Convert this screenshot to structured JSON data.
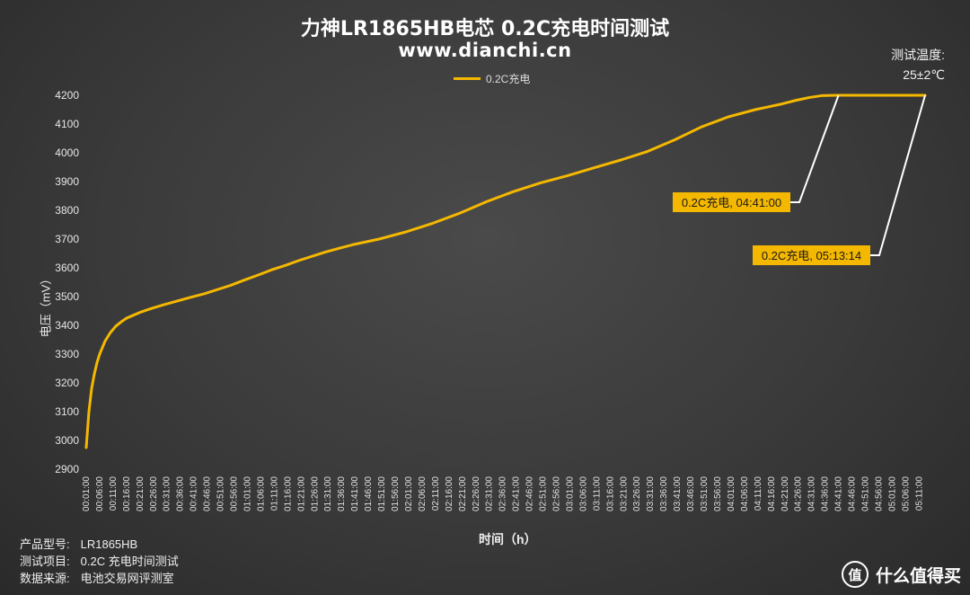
{
  "header": {
    "title": "力神LR1865HB电芯 0.2C充电时间测试",
    "subtitle": "www.dianchi.cn"
  },
  "temperature": {
    "label": "测试温度:",
    "value": "25±2℃"
  },
  "info": {
    "model_label": "产品型号:",
    "model_value": "LR1865HB",
    "item_label": "测试项目:",
    "item_value": "0.2C 充电时间测试",
    "source_label": "数据来源:",
    "source_value": "电池交易网评测室"
  },
  "brand": {
    "logo_char": "值",
    "text": "什么值得买"
  },
  "colors": {
    "line": "#f5b800",
    "callout_bg": "#f5b800",
    "leader": "#ffffff"
  },
  "chart_data": {
    "type": "line",
    "title": "力神LR1865HB电芯 0.2C充电时间测试",
    "xlabel": "时间（h）",
    "ylabel": "电压（mV）",
    "ylim": [
      2900,
      4200
    ],
    "yticks": [
      "2900",
      "3000",
      "3100",
      "3200",
      "3300",
      "3400",
      "3500",
      "3600",
      "3700",
      "3800",
      "3900",
      "4000",
      "4100",
      "4200"
    ],
    "legend_position": "top-center",
    "grid": false,
    "x_tick_labels": [
      "00:01:00",
      "00:06:00",
      "00:11:00",
      "00:16:00",
      "00:21:00",
      "00:26:00",
      "00:31:00",
      "00:36:00",
      "00:41:00",
      "00:46:00",
      "00:51:00",
      "00:56:00",
      "01:01:00",
      "01:06:00",
      "01:11:00",
      "01:16:00",
      "01:21:00",
      "01:26:00",
      "01:31:00",
      "01:36:00",
      "01:41:00",
      "01:46:00",
      "01:51:00",
      "01:56:00",
      "02:01:00",
      "02:06:00",
      "02:11:00",
      "02:16:00",
      "02:21:00",
      "02:26:00",
      "02:31:00",
      "02:36:00",
      "02:41:00",
      "02:46:00",
      "02:51:00",
      "02:56:00",
      "03:01:00",
      "03:06:00",
      "03:11:00",
      "03:16:00",
      "03:21:00",
      "03:26:00",
      "03:31:00",
      "03:36:00",
      "03:41:00",
      "03:46:00",
      "03:51:00",
      "03:56:00",
      "04:01:00",
      "04:06:00",
      "04:11:00",
      "04:16:00",
      "04:21:00",
      "04:26:00",
      "04:31:00",
      "04:36:00",
      "04:41:00",
      "04:46:00",
      "04:51:00",
      "04:56:00",
      "05:01:00",
      "05:06:00",
      "05:11:00"
    ],
    "series": [
      {
        "name": "0.2C充电",
        "x_minutes": [
          1,
          2,
          3,
          4,
          5,
          6,
          8,
          10,
          12,
          14,
          16,
          18,
          21,
          25,
          30,
          35,
          40,
          45,
          50,
          55,
          60,
          65,
          70,
          75,
          80,
          90,
          100,
          110,
          120,
          130,
          140,
          150,
          160,
          170,
          180,
          190,
          200,
          210,
          220,
          230,
          240,
          250,
          255,
          260,
          265,
          270,
          275,
          280,
          281,
          290,
          300,
          313.23
        ],
        "values": [
          2975,
          3100,
          3180,
          3230,
          3270,
          3300,
          3345,
          3375,
          3397,
          3412,
          3425,
          3433,
          3445,
          3458,
          3472,
          3485,
          3498,
          3510,
          3525,
          3540,
          3558,
          3575,
          3593,
          3608,
          3625,
          3655,
          3680,
          3700,
          3725,
          3755,
          3790,
          3830,
          3865,
          3895,
          3920,
          3948,
          3975,
          4005,
          4045,
          4090,
          4125,
          4150,
          4160,
          4170,
          4182,
          4192,
          4199,
          4200,
          4200,
          4200,
          4200,
          4200
        ]
      }
    ],
    "annotations": [
      {
        "text": "0.2C充电, 04:41:00",
        "x_minutes": 281,
        "y": 4200
      },
      {
        "text": "0.2C充电, 05:13:14",
        "x_minutes": 313.23,
        "y": 4200
      }
    ]
  }
}
